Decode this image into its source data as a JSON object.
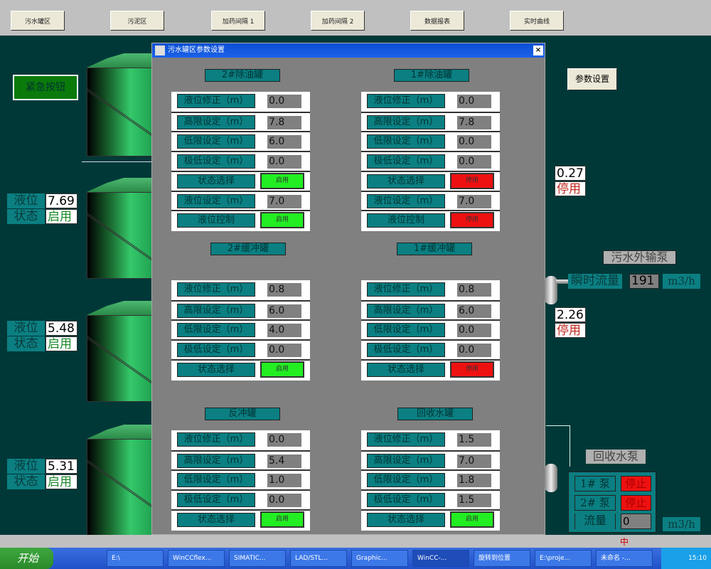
{
  "nav": [
    "污水罐区",
    "污泥区",
    "加药间隔 1",
    "加药间隔 2",
    "数据报表",
    "实时曲线"
  ],
  "emergency_button": "紧急按钮",
  "tanks_left": [
    {
      "level_label": "液位",
      "level": "7.69",
      "status_label": "状态",
      "status": "启用"
    },
    {
      "level_label": "液位",
      "level": "5.48",
      "status_label": "状态",
      "status": "启用"
    },
    {
      "level_label": "液位",
      "level": "5.31",
      "status_label": "状态",
      "status": "启用"
    }
  ],
  "right": {
    "param_button": "参数设置",
    "tank_a": {
      "level": "0.27",
      "status": "停用"
    },
    "tank_b": {
      "level": "2.26",
      "status": "停用"
    },
    "export_pump": {
      "title": "污水外输泵",
      "flow_label": "瞬时流量",
      "flow": "191",
      "unit": "m3/h"
    },
    "recovery_pump": {
      "title": "回收水泵",
      "pump1": "1#  泵",
      "pump1_state": "停止",
      "pump2": "2#  泵",
      "pump2_state": "停止",
      "flow_label": "流量",
      "flow": "0",
      "unit": "m3/h"
    }
  },
  "dialog": {
    "title": "污水罐区参数设置",
    "close": "×",
    "groups": [
      {
        "title": "2#除油罐",
        "rows": [
          [
            "液位修正（m）",
            "0.0"
          ],
          [
            "高限设定（m）",
            "7.8"
          ],
          [
            "低限设定（m）",
            "6.0"
          ],
          [
            "极低设定（m）",
            "0.0"
          ],
          [
            "状态选择",
            "启用",
            "on"
          ],
          [
            "液位设定（m）",
            "7.0"
          ],
          [
            "液位控制",
            "启用",
            "on"
          ]
        ]
      },
      {
        "title": "1#除油罐",
        "rows": [
          [
            "液位修正（m）",
            "0.0"
          ],
          [
            "高限设定（m）",
            "7.8"
          ],
          [
            "低限设定（m）",
            "0.0"
          ],
          [
            "极低设定（m）",
            "0.0"
          ],
          [
            "状态选择",
            "停用",
            "off"
          ],
          [
            "液位设定（m）",
            "7.0"
          ],
          [
            "液位控制",
            "停用",
            "off"
          ]
        ]
      },
      {
        "title": "2#缓冲罐",
        "rows": [
          [
            "液位修正（m）",
            "0.8"
          ],
          [
            "高限设定（m）",
            "6.0"
          ],
          [
            "低限设定（m）",
            "4.0"
          ],
          [
            "极低设定（m）",
            "0.0"
          ],
          [
            "状态选择",
            "启用",
            "on"
          ]
        ]
      },
      {
        "title": "1#缓冲罐",
        "rows": [
          [
            "液位修正（m）",
            "0.8"
          ],
          [
            "高限设定（m）",
            "6.0"
          ],
          [
            "低限设定（m）",
            "0.0"
          ],
          [
            "极低设定（m）",
            "0.0"
          ],
          [
            "状态选择",
            "停用",
            "off"
          ]
        ]
      },
      {
        "title": "反冲罐",
        "rows": [
          [
            "液位修正（m）",
            "0.0"
          ],
          [
            "高限设定（m）",
            "5.4"
          ],
          [
            "低限设定（m）",
            "1.0"
          ],
          [
            "极低设定（m）",
            "0.0"
          ],
          [
            "状态选择",
            "启用",
            "on"
          ]
        ]
      },
      {
        "title": "回收水罐",
        "rows": [
          [
            "液位修正（m）",
            "1.5"
          ],
          [
            "高限设定（m）",
            "7.0"
          ],
          [
            "低限设定（m）",
            "1.8"
          ],
          [
            "极低设定（m）",
            "1.5"
          ],
          [
            "状态选择",
            "启用",
            "on"
          ]
        ]
      }
    ]
  },
  "taskbar": {
    "start": "开始",
    "tasks": [
      "E:\\",
      "WinCCflex...",
      "SIMATIC...",
      "LAD/STL...",
      "Graphic...",
      "WinCC-...",
      "旋转到位置",
      "E:\\proje...",
      "未命名 -..."
    ],
    "clock": "15:10",
    "tray_ime": "中"
  },
  "colors": {
    "background": "#003838",
    "teal_label": "#0b7f82",
    "enabled": "#22ee22",
    "disabled": "#ee1111"
  }
}
